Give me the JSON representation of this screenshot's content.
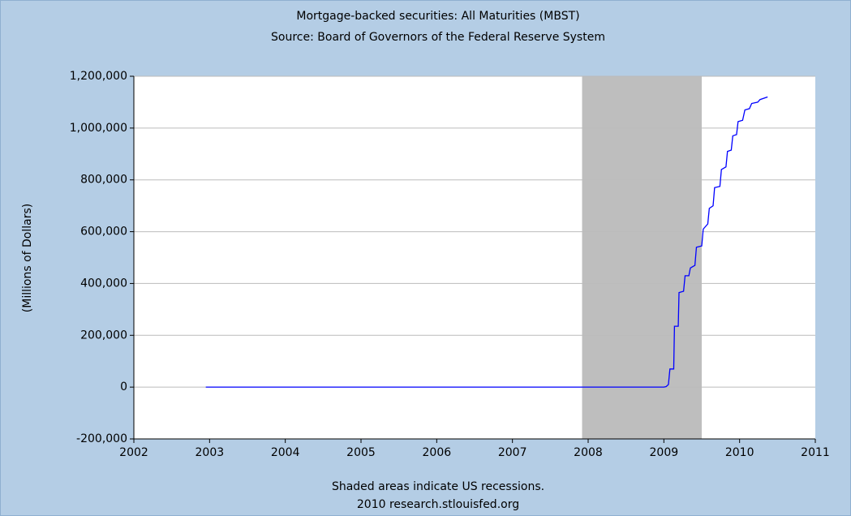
{
  "chart_data": {
    "type": "line",
    "title": "Mortgage-backed securities: All Maturities (MBST)",
    "subtitle": "Source: Board of Governors of the Federal Reserve System",
    "y_label": "(Millions of Dollars)",
    "notes": [
      "Shaded areas indicate US recessions.",
      "2010 research.stlouisfed.org"
    ],
    "recessions": [
      {
        "start": 2007.92,
        "end": 2009.5
      }
    ],
    "recession_color": "#bebebe",
    "grid": true,
    "x": [
      2002.95,
      2009.0,
      2009.03,
      2009.06,
      2009.08,
      2009.13,
      2009.14,
      2009.19,
      2009.2,
      2009.26,
      2009.28,
      2009.33,
      2009.35,
      2009.41,
      2009.43,
      2009.5,
      2009.52,
      2009.58,
      2009.6,
      2009.65,
      2009.67,
      2009.74,
      2009.76,
      2009.82,
      2009.84,
      2009.89,
      2009.91,
      2009.96,
      2009.98,
      2010.04,
      2010.07,
      2010.13,
      2010.16,
      2010.24,
      2010.27,
      2010.37
    ],
    "series": [
      {
        "name": "MBST",
        "color": "#0000ff",
        "values": [
          0,
          0,
          2000,
          10000,
          70000,
          70000,
          235000,
          235000,
          365000,
          370000,
          430000,
          430000,
          460000,
          470000,
          540000,
          545000,
          610000,
          630000,
          690000,
          700000,
          770000,
          775000,
          840000,
          850000,
          910000,
          915000,
          970000,
          975000,
          1025000,
          1030000,
          1070000,
          1075000,
          1095000,
          1100000,
          1110000,
          1120000
        ]
      }
    ],
    "xlim": [
      2002,
      2011
    ],
    "xticks": [
      2002,
      2003,
      2004,
      2005,
      2006,
      2007,
      2008,
      2009,
      2010,
      2011
    ],
    "ylim": [
      -200000,
      1200000
    ],
    "yticks": [
      {
        "value": -200000,
        "label": "-200,000"
      },
      0,
      {
        "value": 200000,
        "label": "200,000"
      },
      {
        "value": 400000,
        "label": "400,000"
      },
      {
        "value": 600000,
        "label": "600,000"
      },
      {
        "value": 800000,
        "label": "800,000"
      },
      {
        "value": 1000000,
        "label": "1,000,000"
      },
      {
        "value": 1200000,
        "label": "1,200,000"
      }
    ]
  }
}
